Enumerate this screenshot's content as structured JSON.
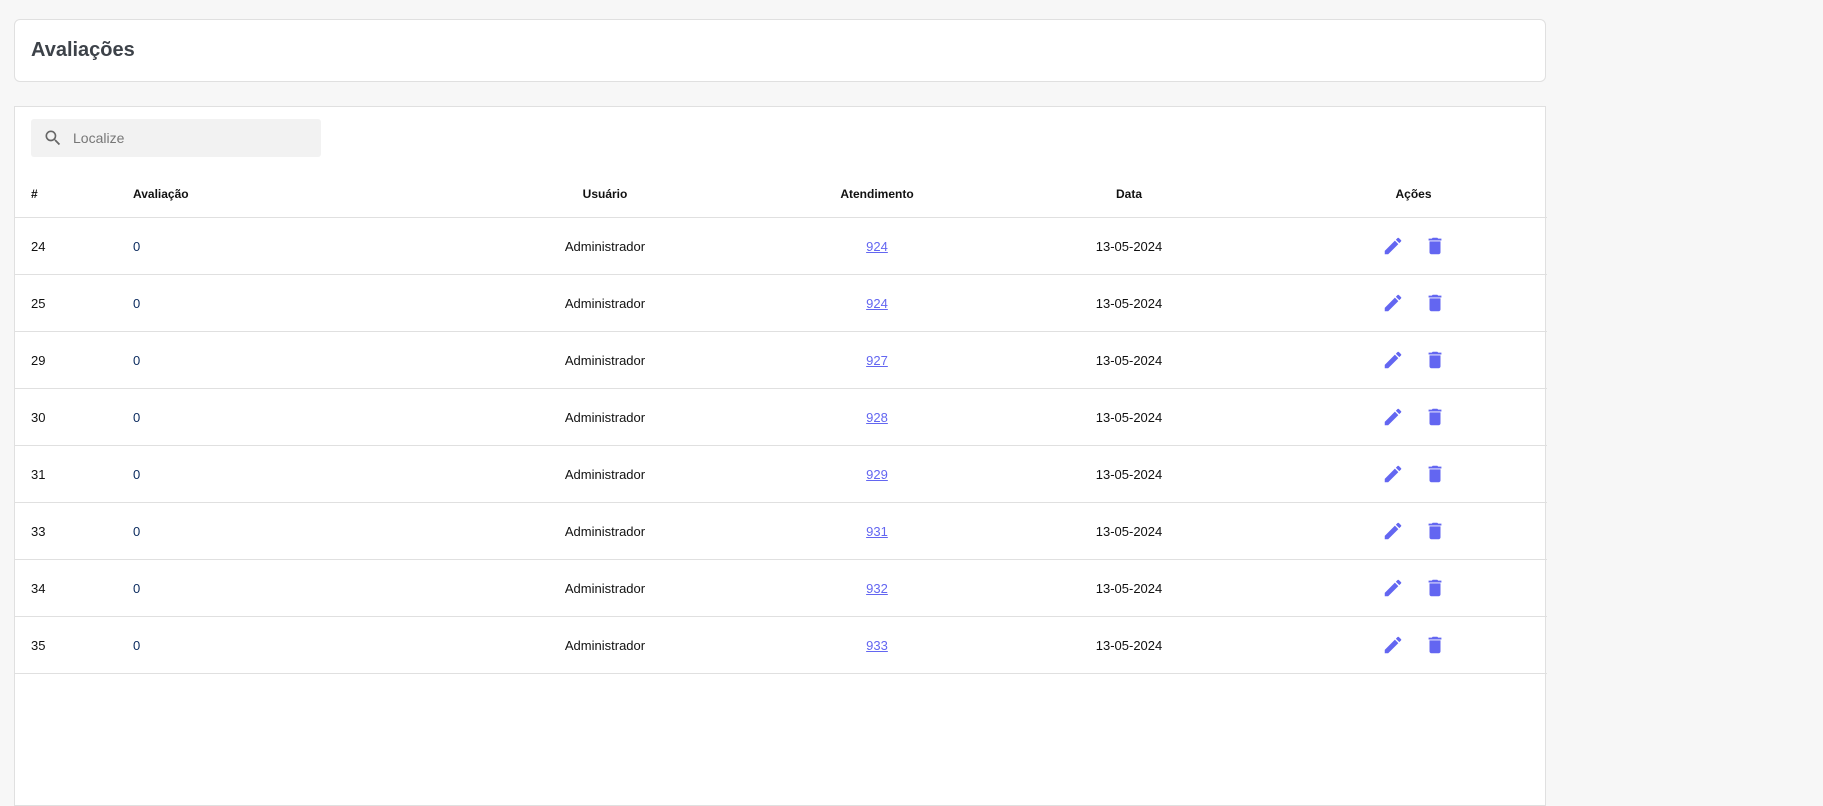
{
  "header": {
    "title": "Avaliações"
  },
  "search": {
    "placeholder": "Localize",
    "value": "",
    "icon": "search-icon"
  },
  "colors": {
    "accent": "#6366f1"
  },
  "table": {
    "columns": [
      "#",
      "Avaliação",
      "Usuário",
      "Atendimento",
      "Data",
      "Ações"
    ],
    "rows": [
      {
        "id": "24",
        "rating": "0",
        "user": "Administrador",
        "ticket": "924",
        "date": "13-05-2024"
      },
      {
        "id": "25",
        "rating": "0",
        "user": "Administrador",
        "ticket": "924",
        "date": "13-05-2024"
      },
      {
        "id": "29",
        "rating": "0",
        "user": "Administrador",
        "ticket": "927",
        "date": "13-05-2024"
      },
      {
        "id": "30",
        "rating": "0",
        "user": "Administrador",
        "ticket": "928",
        "date": "13-05-2024"
      },
      {
        "id": "31",
        "rating": "0",
        "user": "Administrador",
        "ticket": "929",
        "date": "13-05-2024"
      },
      {
        "id": "33",
        "rating": "0",
        "user": "Administrador",
        "ticket": "931",
        "date": "13-05-2024"
      },
      {
        "id": "34",
        "rating": "0",
        "user": "Administrador",
        "ticket": "932",
        "date": "13-05-2024"
      },
      {
        "id": "35",
        "rating": "0",
        "user": "Administrador",
        "ticket": "933",
        "date": "13-05-2024"
      }
    ]
  }
}
